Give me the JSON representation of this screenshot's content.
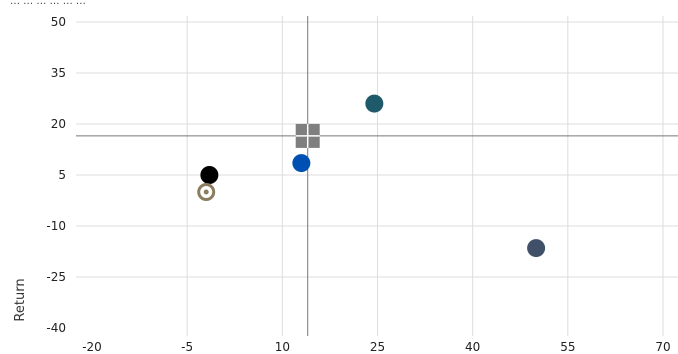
{
  "header_fragment": "… … … … … …",
  "chart_data": {
    "type": "scatter",
    "title": "",
    "xlabel": "",
    "ylabel": "Return",
    "xlim": [
      -20,
      70
    ],
    "ylim": [
      -40,
      50
    ],
    "x_ticks": [
      -20,
      -5,
      10,
      25,
      40,
      55,
      70
    ],
    "y_ticks": [
      -40,
      -25,
      -10,
      5,
      20,
      35,
      50
    ],
    "grid": true,
    "crosshair": {
      "x": 14,
      "y": 16.5
    },
    "points": [
      {
        "x": -1.5,
        "y": 5,
        "marker": "circle",
        "color": "#000000"
      },
      {
        "x": -2,
        "y": 0,
        "marker": "ring",
        "color": "#8b7d5e"
      },
      {
        "x": 13,
        "y": 8.5,
        "marker": "circle",
        "color": "#0050b3"
      },
      {
        "x": 24.5,
        "y": 26,
        "marker": "circle",
        "color": "#1f5a6a"
      },
      {
        "x": 50,
        "y": -16.5,
        "marker": "circle",
        "color": "#3f5068"
      },
      {
        "x": 14,
        "y": 16.5,
        "marker": "square",
        "color": "#7f7f7f"
      }
    ]
  }
}
